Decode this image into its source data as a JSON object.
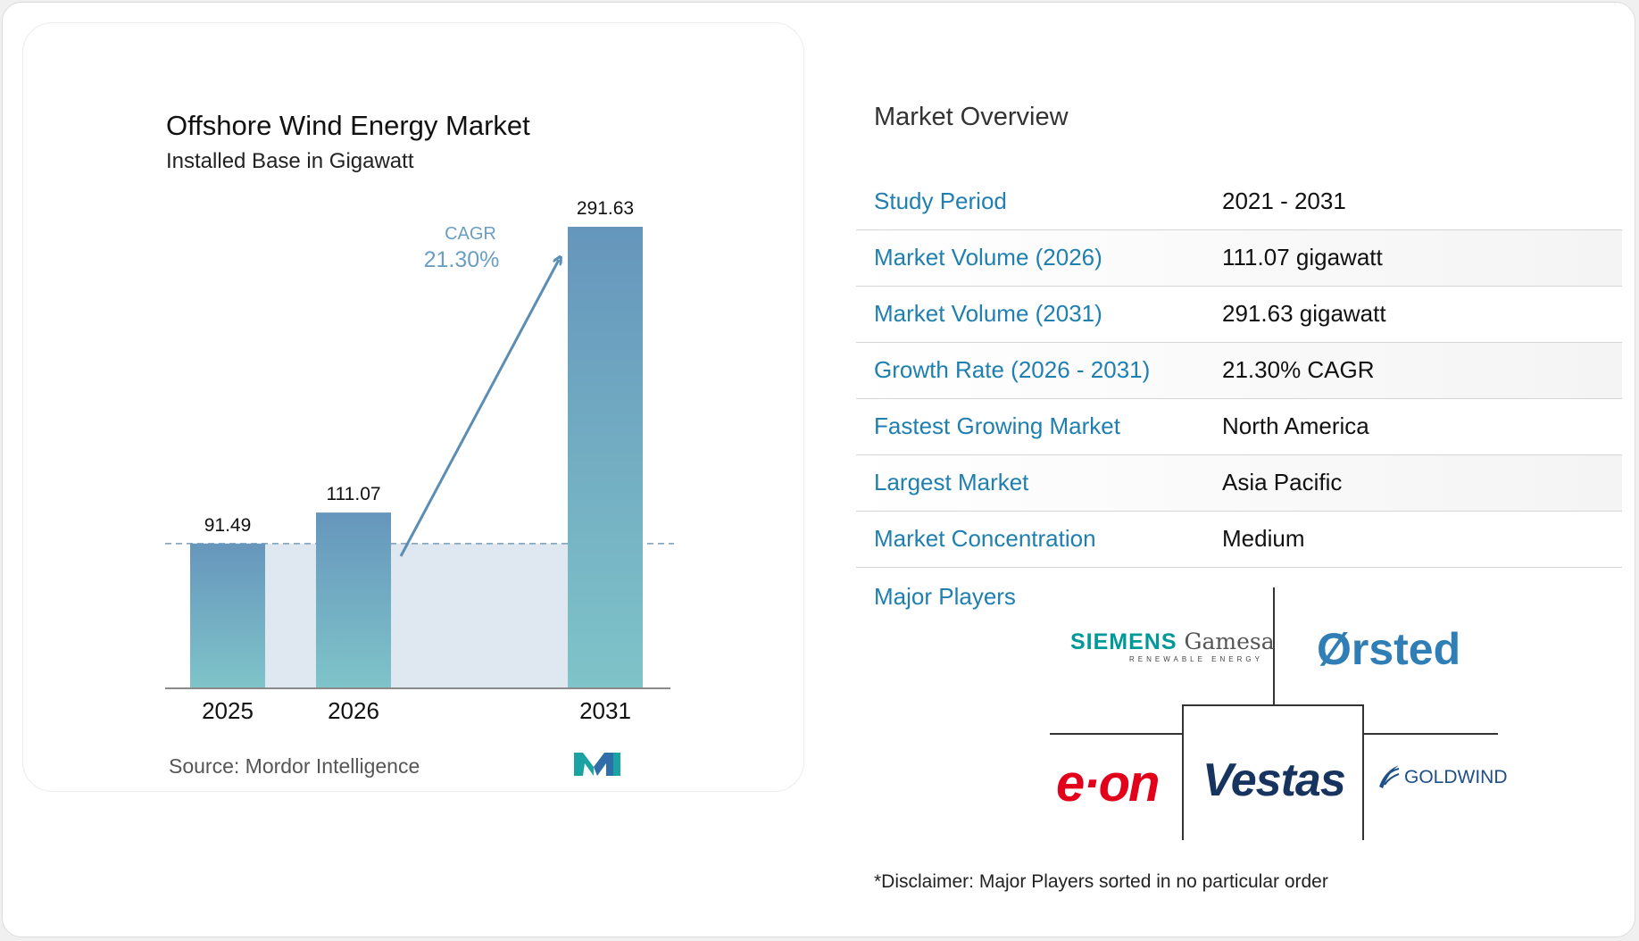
{
  "chart_data": {
    "type": "bar",
    "title": "Offshore Wind Energy Market",
    "subtitle": "Installed Base in Gigawatt",
    "categories": [
      "2025",
      "2026",
      "2031"
    ],
    "values": [
      91.49,
      111.07,
      291.63
    ],
    "value_labels": [
      "91.49",
      "111.07",
      "291.63"
    ],
    "cagr_label": "CAGR",
    "cagr_value": "21.30%",
    "source": "Source: Mordor Intelligence",
    "bar_gradient": [
      "#6696bc",
      "#7fc4c9"
    ],
    "arrow_color": "#5b8db5"
  },
  "overview": {
    "title": "Market Overview",
    "rows": [
      {
        "label": "Study Period",
        "value": "2021 - 2031"
      },
      {
        "label": "Market Volume (2026)",
        "value": "111.07 gigawatt"
      },
      {
        "label": "Market Volume (2031)",
        "value": "291.63 gigawatt"
      },
      {
        "label": "Growth Rate (2026 - 2031)",
        "value": "21.30% CAGR"
      },
      {
        "label": "Fastest Growing Market",
        "value": "North America"
      },
      {
        "label": "Largest Market",
        "value": "Asia Pacific"
      },
      {
        "label": "Market Concentration",
        "value": "Medium"
      }
    ],
    "major_players_label": "Major Players",
    "players": {
      "siemens": "SIEMENS",
      "gamesa": "Gamesa",
      "siemens_sub": "RENEWABLE ENERGY",
      "orsted": "Ørsted",
      "eon": "e·on",
      "vestas": "Vestas",
      "goldwind": "GOLDWIND"
    },
    "disclaimer": "*Disclaimer: Major Players sorted in no particular order"
  },
  "colors": {
    "label_blue": "#1e7fb0",
    "eon_red": "#e2001a",
    "vestas_navy": "#16345e",
    "orsted_blue": "#2f7fb6",
    "siemens_teal": "#009999"
  }
}
